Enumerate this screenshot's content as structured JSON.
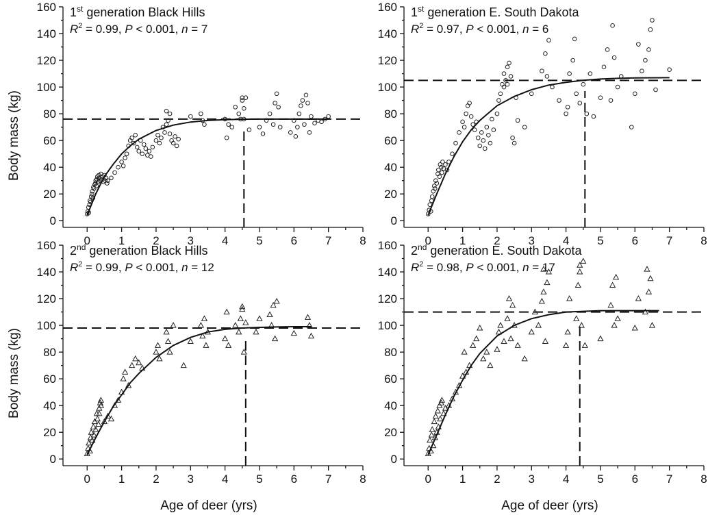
{
  "figure": {
    "ylabel": "Body mass (kg)",
    "xlabel": "Age of deer (yrs)"
  },
  "chart_data": [
    {
      "type": "scatter",
      "title_prefix": "1",
      "title_sup": "st",
      "title_rest": " generation Black Hills",
      "stats": {
        "r2": "0.99",
        "p": "< 0.001",
        "n": "7"
      },
      "xlabel": "Age of deer (yrs)",
      "ylabel": "Body mass (kg)",
      "xlim": [
        -0.7,
        8
      ],
      "ylim": [
        -5,
        160
      ],
      "xticks": [
        0,
        1,
        2,
        3,
        4,
        5,
        6,
        7,
        8
      ],
      "yticks": [
        0,
        20,
        40,
        60,
        80,
        100,
        120,
        140,
        160
      ],
      "marker": "circle",
      "asymptote": 76,
      "age_at_asymptote": 4.55,
      "curve": {
        "x": [
          0,
          0.25,
          0.5,
          0.75,
          1,
          1.25,
          1.5,
          2,
          2.5,
          3,
          3.5,
          4,
          4.5,
          5,
          5.5,
          6,
          7
        ],
        "y": [
          4,
          20,
          33,
          42,
          50,
          56,
          61,
          67.5,
          71.5,
          73.8,
          75,
          75.6,
          75.9,
          76,
          76,
          76,
          76
        ]
      },
      "points": {
        "x": [
          0,
          0.02,
          0.04,
          0.05,
          0.07,
          0.08,
          0.1,
          0.12,
          0.14,
          0.15,
          0.17,
          0.18,
          0.2,
          0.22,
          0.24,
          0.25,
          0.27,
          0.28,
          0.3,
          0.32,
          0.34,
          0.35,
          0.37,
          0.4,
          0.42,
          0.45,
          0.48,
          0.5,
          0.52,
          0.55,
          0.58,
          0.6,
          0.7,
          0.8,
          0.9,
          1,
          1.05,
          1.1,
          1.15,
          1.2,
          1.25,
          1.3,
          1.35,
          1.4,
          1.45,
          1.5,
          1.55,
          1.6,
          1.65,
          1.7,
          1.75,
          1.8,
          1.85,
          1.9,
          2,
          2.05,
          2.1,
          2.15,
          2.2,
          2.25,
          2.3,
          2.35,
          2.4,
          2.45,
          2.5,
          2.55,
          2.6,
          2.65,
          3,
          3.3,
          3.35,
          3.4,
          4,
          4.05,
          4.1,
          4.2,
          4.3,
          4.4,
          4.5,
          4.55,
          4.6,
          4.7,
          5,
          5.1,
          5.2,
          5.3,
          5.4,
          5.45,
          5.5,
          5.55,
          5.6,
          5.9,
          6,
          6.05,
          6.1,
          6.15,
          6.2,
          6.25,
          6.3,
          6.35,
          6.4,
          6.45,
          6.5,
          6.6,
          6.7,
          6.8,
          6.9,
          7,
          2.3,
          2.4,
          4.45,
          4.5,
          4.55
        ],
        "y": [
          5,
          7,
          10,
          6,
          12,
          15,
          14,
          18,
          20,
          22,
          17,
          25,
          24,
          27,
          28,
          30,
          26,
          31,
          33,
          29,
          34,
          32,
          30,
          35,
          31,
          33,
          29,
          34,
          30,
          32,
          28,
          30,
          32,
          36,
          40,
          44,
          41,
          47,
          50,
          56,
          60,
          62,
          58,
          64,
          55,
          52,
          60,
          50,
          57,
          54,
          49,
          52,
          48,
          55,
          60,
          64,
          58,
          62,
          70,
          66,
          72,
          75,
          65,
          60,
          58,
          63,
          56,
          61,
          78,
          80,
          75,
          72,
          76,
          62,
          72,
          70,
          85,
          80,
          90,
          76,
          92,
          68,
          70,
          65,
          75,
          80,
          72,
          88,
          95,
          85,
          70,
          66,
          75,
          63,
          70,
          80,
          86,
          90,
          72,
          94,
          88,
          66,
          78,
          73,
          75,
          74,
          76,
          78,
          82,
          80,
          76,
          92,
          84
        ]
      }
    },
    {
      "type": "scatter",
      "title_prefix": "1",
      "title_sup": "st",
      "title_rest": " generation E. South Dakota",
      "stats": {
        "r2": "0.97",
        "p": "< 0.001",
        "n": "6"
      },
      "xlabel": "Age of deer (yrs)",
      "ylabel": "Body mass (kg)",
      "xlim": [
        -0.7,
        8
      ],
      "ylim": [
        -5,
        160
      ],
      "xticks": [
        0,
        1,
        2,
        3,
        4,
        5,
        6,
        7,
        8
      ],
      "yticks": [
        0,
        20,
        40,
        60,
        80,
        100,
        120,
        140,
        160
      ],
      "marker": "circle",
      "asymptote": 105,
      "age_at_asymptote": 4.55,
      "curve": {
        "x": [
          0,
          0.25,
          0.5,
          0.75,
          1,
          1.25,
          1.5,
          2,
          2.5,
          3,
          3.5,
          4,
          4.5,
          5,
          5.5,
          6,
          7
        ],
        "y": [
          4,
          20,
          35,
          48,
          59,
          68,
          75,
          86,
          93,
          98,
          101.5,
          103.5,
          105,
          106,
          106.5,
          106.8,
          107
        ]
      },
      "points": {
        "x": [
          0,
          0.03,
          0.05,
          0.08,
          0.1,
          0.12,
          0.15,
          0.18,
          0.2,
          0.22,
          0.25,
          0.28,
          0.3,
          0.33,
          0.35,
          0.38,
          0.4,
          0.42,
          0.45,
          0.5,
          0.55,
          0.6,
          0.7,
          0.8,
          0.9,
          1,
          1.05,
          1.1,
          1.15,
          1.2,
          1.25,
          1.3,
          1.35,
          1.4,
          1.45,
          1.5,
          1.55,
          1.6,
          1.65,
          1.7,
          1.75,
          1.8,
          1.85,
          1.9,
          2,
          2.05,
          2.1,
          2.15,
          2.2,
          2.25,
          2.3,
          2.35,
          2.4,
          2.45,
          2.5,
          2.55,
          2.6,
          2.8,
          3,
          3.3,
          3.4,
          3.5,
          3.6,
          3.8,
          4,
          4.05,
          4.1,
          4.2,
          4.3,
          4.4,
          4.5,
          4.6,
          4.7,
          4.8,
          5,
          5.1,
          5.2,
          5.3,
          5.4,
          5.5,
          5.6,
          5.9,
          6,
          6.1,
          6.2,
          6.3,
          6.4,
          6.5,
          6.6,
          7,
          2.2,
          2.3,
          3.45,
          4.25,
          5.35,
          6.45
        ],
        "y": [
          5,
          8,
          12,
          7,
          15,
          18,
          22,
          26,
          24,
          30,
          28,
          35,
          38,
          33,
          42,
          40,
          36,
          44,
          39,
          42,
          38,
          44,
          50,
          58,
          66,
          74,
          70,
          80,
          86,
          88,
          78,
          72,
          68,
          74,
          62,
          56,
          66,
          60,
          54,
          70,
          64,
          58,
          76,
          68,
          80,
          90,
          95,
          102,
          110,
          105,
          115,
          118,
          108,
          62,
          58,
          92,
          75,
          70,
          95,
          112,
          125,
          135,
          100,
          90,
          80,
          85,
          110,
          120,
          95,
          88,
          102,
          80,
          110,
          78,
          92,
          115,
          128,
          90,
          122,
          100,
          108,
          70,
          95,
          132,
          112,
          120,
          128,
          150,
          98,
          113,
          100,
          102,
          108,
          136,
          146,
          143
        ]
      }
    },
    {
      "type": "scatter",
      "title_prefix": "2",
      "title_sup": "nd",
      "title_rest": " generation Black Hills",
      "stats": {
        "r2": "0.99",
        "p": "< 0.001",
        "n": "12"
      },
      "xlabel": "Age of deer (yrs)",
      "ylabel": "Body mass (kg)",
      "xlim": [
        -0.7,
        8
      ],
      "ylim": [
        -5,
        160
      ],
      "xticks": [
        0,
        1,
        2,
        3,
        4,
        5,
        6,
        7,
        8
      ],
      "yticks": [
        0,
        20,
        40,
        60,
        80,
        100,
        120,
        140,
        160
      ],
      "marker": "triangle",
      "asymptote": 98,
      "age_at_asymptote": 4.6,
      "curve": {
        "x": [
          0,
          0.25,
          0.5,
          0.75,
          1,
          1.25,
          1.5,
          2,
          2.5,
          3,
          3.5,
          4,
          4.5,
          5,
          5.5,
          6,
          6.5
        ],
        "y": [
          3,
          16,
          28,
          39,
          48,
          57,
          64,
          76,
          85,
          91,
          95,
          97,
          98,
          98.5,
          98.8,
          99,
          99
        ]
      },
      "points": {
        "x": [
          0,
          0.03,
          0.05,
          0.08,
          0.1,
          0.12,
          0.15,
          0.18,
          0.2,
          0.22,
          0.25,
          0.28,
          0.3,
          0.33,
          0.35,
          0.38,
          0.4,
          0.5,
          0.6,
          0.7,
          0.8,
          0.9,
          1,
          1.05,
          1.1,
          1.2,
          1.3,
          1.4,
          1.5,
          1.6,
          2,
          2.05,
          2.1,
          2.3,
          2.35,
          2.4,
          2.5,
          2.8,
          3,
          3.3,
          3.35,
          3.4,
          3.45,
          3.5,
          4,
          4.05,
          4.1,
          4.3,
          4.4,
          4.45,
          4.5,
          4.55,
          4.6,
          4.9,
          5,
          5.3,
          5.35,
          5.4,
          5.45,
          5.5,
          6,
          6.4,
          6.45,
          6.5,
          0.35,
          0.4,
          4.5
        ],
        "y": [
          4,
          8,
          12,
          6,
          16,
          20,
          14,
          24,
          18,
          28,
          22,
          34,
          30,
          26,
          38,
          42,
          44,
          28,
          32,
          30,
          40,
          44,
          50,
          60,
          65,
          55,
          70,
          75,
          72,
          68,
          80,
          85,
          75,
          95,
          88,
          80,
          100,
          70,
          88,
          100,
          92,
          105,
          85,
          95,
          90,
          110,
          85,
          100,
          95,
          105,
          112,
          80,
          102,
          95,
          105,
          108,
          100,
          115,
          90,
          118,
          94,
          106,
          100,
          92,
          34,
          40,
          114
        ]
      }
    },
    {
      "type": "scatter",
      "title_prefix": "2",
      "title_sup": "nd",
      "title_rest": " generation E. South Dakota",
      "stats": {
        "r2": "0.98",
        "p": "< 0.001",
        "n": "17"
      },
      "xlabel": "Age of deer (yrs)",
      "ylabel": "Body mass (kg)",
      "xlim": [
        -0.7,
        8
      ],
      "ylim": [
        -5,
        160
      ],
      "xticks": [
        0,
        1,
        2,
        3,
        4,
        5,
        6,
        7,
        8
      ],
      "yticks": [
        0,
        20,
        40,
        60,
        80,
        100,
        120,
        140,
        160
      ],
      "marker": "triangle",
      "asymptote": 110,
      "age_at_asymptote": 4.4,
      "curve": {
        "x": [
          0,
          0.25,
          0.5,
          0.75,
          1,
          1.25,
          1.5,
          2,
          2.5,
          3,
          3.5,
          4,
          4.5,
          5,
          5.5,
          6,
          6.7
        ],
        "y": [
          3,
          18,
          33,
          47,
          59,
          70,
          79,
          92,
          100,
          105,
          108,
          110,
          110.5,
          111,
          111,
          111,
          111
        ]
      },
      "points": {
        "x": [
          0,
          0.03,
          0.05,
          0.08,
          0.1,
          0.12,
          0.15,
          0.18,
          0.2,
          0.22,
          0.25,
          0.28,
          0.3,
          0.33,
          0.35,
          0.38,
          0.4,
          0.45,
          0.5,
          0.6,
          0.7,
          0.8,
          0.9,
          1,
          1.05,
          1.1,
          1.2,
          1.3,
          1.4,
          1.5,
          1.6,
          1.7,
          1.8,
          2,
          2.05,
          2.1,
          2.2,
          2.3,
          2.35,
          2.4,
          2.45,
          2.5,
          2.6,
          2.8,
          3,
          3.1,
          3.2,
          3.3,
          3.35,
          3.4,
          3.45,
          3.5,
          4,
          4.05,
          4.1,
          4.3,
          4.35,
          4.4,
          4.45,
          4.5,
          4.55,
          5,
          5.3,
          5.35,
          5.4,
          5.45,
          5.5,
          6,
          6.1,
          6.3,
          6.35,
          6.4,
          6.45,
          6.5,
          3.35,
          4.4
        ],
        "y": [
          4,
          8,
          14,
          6,
          18,
          22,
          10,
          28,
          16,
          32,
          20,
          36,
          24,
          40,
          30,
          42,
          44,
          34,
          38,
          40,
          45,
          50,
          55,
          62,
          80,
          65,
          70,
          85,
          90,
          98,
          75,
          80,
          70,
          82,
          95,
          100,
          88,
          105,
          120,
          90,
          115,
          100,
          85,
          75,
          95,
          110,
          100,
          118,
          125,
          88,
          132,
          140,
          85,
          95,
          120,
          105,
          130,
          140,
          100,
          148,
          85,
          90,
          115,
          130,
          100,
          136,
          105,
          98,
          120,
          110,
          142,
          125,
          135,
          100,
          142,
          145
        ]
      }
    }
  ]
}
